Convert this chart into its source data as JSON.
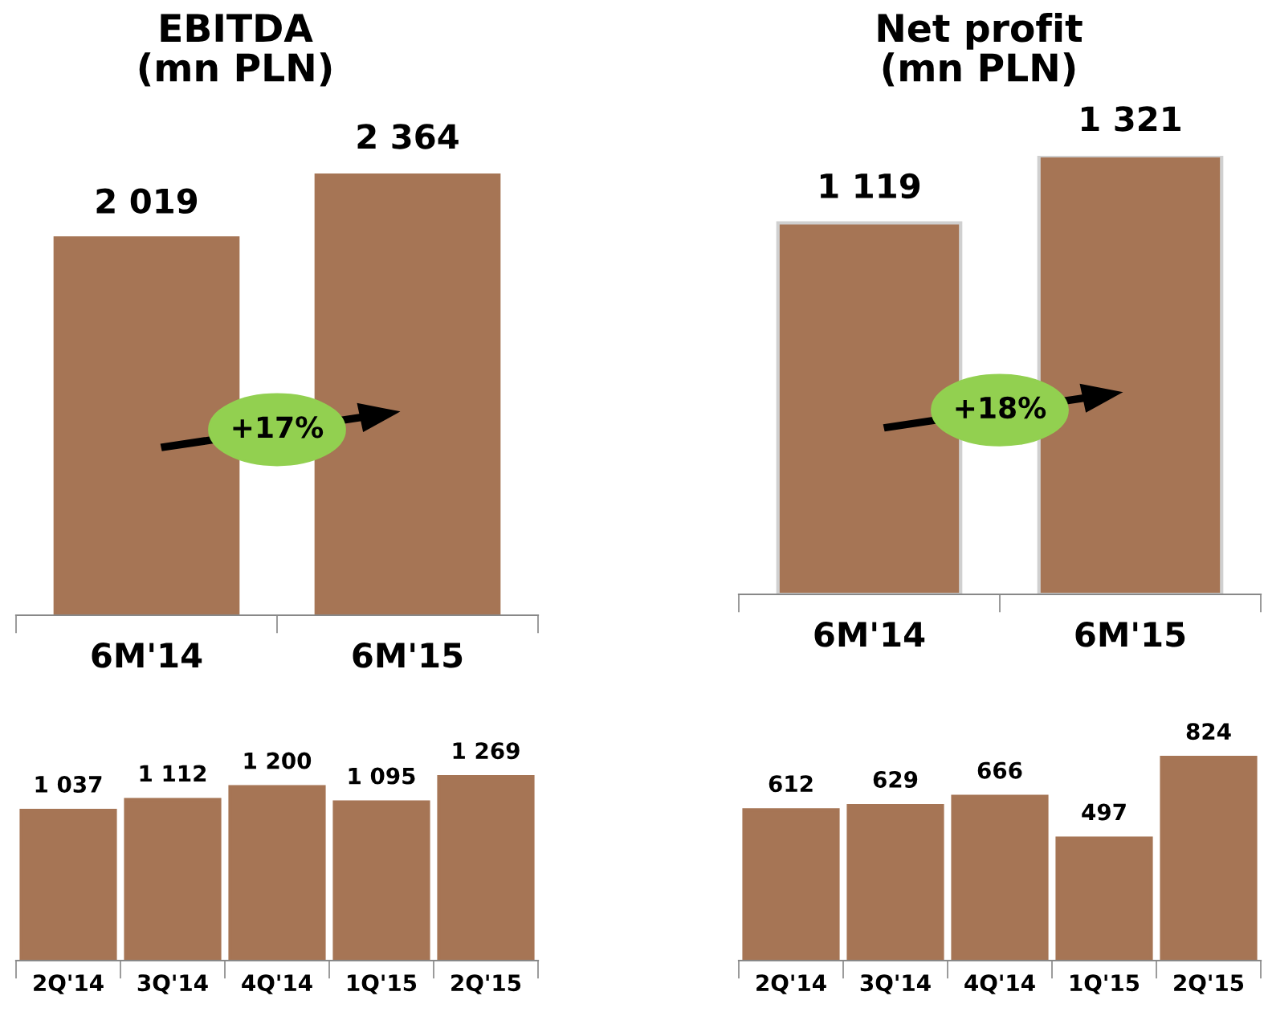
{
  "chart_data": [
    {
      "type": "bar",
      "title": "EBITDA\n(mn PLN)",
      "categories": [
        "6M'14",
        "6M'15"
      ],
      "values": [
        2019,
        2364
      ],
      "value_labels": [
        "2 019",
        "2 364"
      ],
      "color": "#a67555",
      "annotations": [
        "+17%"
      ],
      "grid": false,
      "legend": false
    },
    {
      "type": "bar",
      "title": "Net profit\n(mn PLN)",
      "categories": [
        "6M'14",
        "6M'15"
      ],
      "values": [
        1119,
        1321
      ],
      "value_labels": [
        "1 119",
        "1 321"
      ],
      "color": "#a67555",
      "annotations": [
        "+18%"
      ],
      "grid": false,
      "legend": false
    },
    {
      "type": "bar",
      "categories": [
        "2Q'14",
        "3Q'14",
        "4Q'14",
        "1Q'15",
        "2Q'15"
      ],
      "values": [
        1037,
        1112,
        1200,
        1095,
        1269
      ],
      "value_labels": [
        "1 037",
        "1 112",
        "1 200",
        "1 095",
        "1 269"
      ],
      "color": "#a67555",
      "grid": false,
      "legend": false
    },
    {
      "type": "bar",
      "categories": [
        "2Q'14",
        "3Q'14",
        "4Q'14",
        "1Q'15",
        "2Q'15"
      ],
      "values": [
        612,
        629,
        666,
        497,
        824
      ],
      "value_labels": [
        "612",
        "629",
        "666",
        "497",
        "824"
      ],
      "color": "#a67555",
      "grid": false,
      "legend": false
    }
  ]
}
